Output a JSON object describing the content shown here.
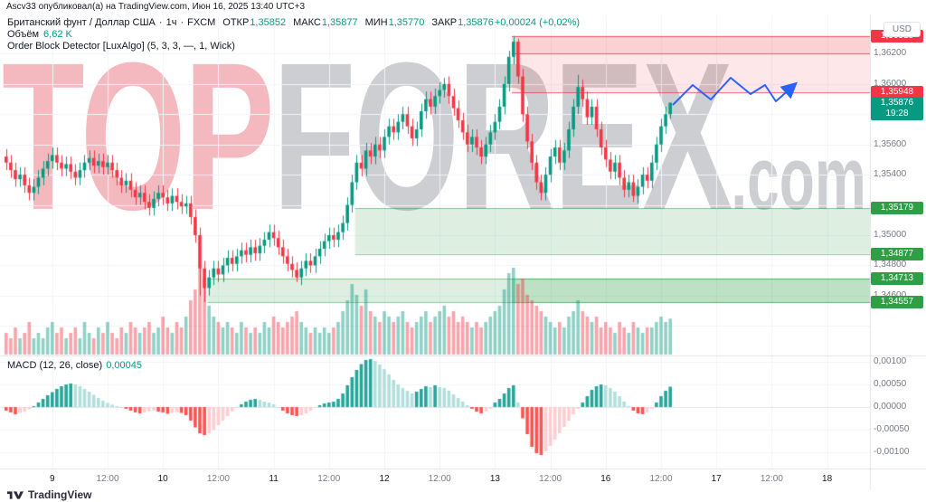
{
  "attribution": "Ascv33 опубликовал(а) на TradingView.com, Июн 16, 2025 13:40 UTC+3",
  "watermark": {
    "top": "TOP",
    "middle": "FOREX",
    "suffix": ".com"
  },
  "header": {
    "symbol": {
      "title": "Британский фунт / Доллар США",
      "sep": "·",
      "interval": "1ч",
      "exchange": "FXCM",
      "open_label": "ОТКР",
      "open": "1,35852",
      "high_label": "МАКС",
      "high": "1,35877",
      "low_label": "МИН",
      "low": "1,35770",
      "close_label": "ЗАКР",
      "close": "1,35876",
      "change": "+0,00024 (+0,02%)"
    },
    "volume": {
      "label": "Объём",
      "value": "6,62 K"
    },
    "indicator_line": "Order Block Detector [LuxAlgo] (5, 3, 3, —, 1, Wick)"
  },
  "macd": {
    "label": "MACD (12, 26, close)",
    "value": "0,00045"
  },
  "axis": {
    "currency": "USD",
    "price_gridlines": [
      {
        "v": 1.362,
        "label": "1,36200"
      },
      {
        "v": 1.36,
        "label": "1,36000"
      },
      {
        "v": 1.358,
        "label": ""
      },
      {
        "v": 1.356,
        "label": "1,35600"
      },
      {
        "v": 1.354,
        "label": "1,35400"
      },
      {
        "v": 1.352,
        "label": ""
      },
      {
        "v": 1.35,
        "label": "1,35000"
      },
      {
        "v": 1.348,
        "label": "1,34800"
      },
      {
        "v": 1.346,
        "label": "1,34600"
      },
      {
        "v": 1.344,
        "label": ""
      }
    ],
    "price_labels": [
      {
        "text": "1,36318",
        "v": 1.36318,
        "bg": "#f23645"
      },
      {
        "text": "1,35948",
        "v": 1.35948,
        "bg": "#f23645"
      },
      {
        "text": "1,35179",
        "v": 1.35179,
        "bg": "#2f9e44"
      },
      {
        "text": "1,34877",
        "v": 1.34877,
        "bg": "#2f9e44"
      },
      {
        "text": "1,34713",
        "v": 1.34713,
        "bg": "#2f9e44"
      },
      {
        "text": "1,34557",
        "v": 1.34557,
        "bg": "#2f9e44"
      }
    ],
    "current_price": {
      "text": "1,35876",
      "countdown": "19:28",
      "v": 1.35876,
      "bg": "#089981"
    },
    "macd_gridlines": [
      {
        "v": 0.001,
        "label": "0,00100"
      },
      {
        "v": 0.0005,
        "label": "0,00050"
      },
      {
        "v": 0.0,
        "label": "0,00000"
      },
      {
        "v": -0.0005,
        "label": "-0,00050"
      },
      {
        "v": -0.001,
        "label": "-0,00100"
      }
    ],
    "time_ticks": [
      {
        "i": 10,
        "label": "9",
        "major": true
      },
      {
        "i": 22,
        "label": "12:00",
        "major": false
      },
      {
        "i": 34,
        "label": "10",
        "major": true
      },
      {
        "i": 46,
        "label": "12:00",
        "major": false
      },
      {
        "i": 58,
        "label": "11",
        "major": true
      },
      {
        "i": 70,
        "label": "12:00",
        "major": false
      },
      {
        "i": 82,
        "label": "12",
        "major": true
      },
      {
        "i": 94,
        "label": "12:00",
        "major": false
      },
      {
        "i": 106,
        "label": "13",
        "major": true
      },
      {
        "i": 118,
        "label": "12:00",
        "major": false
      },
      {
        "i": 130,
        "label": "16",
        "major": true
      },
      {
        "i": 142,
        "label": "12:00",
        "major": false
      },
      {
        "i": 154,
        "label": "17",
        "major": true
      },
      {
        "i": 166,
        "label": "12:00",
        "major": false
      },
      {
        "i": 178,
        "label": "18",
        "major": true
      }
    ]
  },
  "footer": {
    "brand": "TradingView"
  },
  "chart_data": {
    "type": "candlestick",
    "symbol": "GBP/USD",
    "timeframe": "1h",
    "title": "Британский фунт / Доллар США · 1ч · FXCM",
    "price_range": {
      "min": 1.3421,
      "max": 1.3646
    },
    "macd_range": {
      "min": -0.00125,
      "max": 0.00115
    },
    "open_first": 1.3552,
    "default_wick": 0.0005,
    "closes": [
      1.3548,
      1.3543,
      1.3537,
      1.354,
      1.3533,
      1.3528,
      1.3532,
      1.3538,
      1.3544,
      1.3549,
      1.3553,
      1.3548,
      1.3544,
      1.3547,
      1.3542,
      1.3538,
      1.3543,
      1.3548,
      1.3551,
      1.3546,
      1.3549,
      1.3545,
      1.3548,
      1.3543,
      1.3538,
      1.3533,
      1.3536,
      1.353,
      1.3525,
      1.3528,
      1.3522,
      1.3518,
      1.3524,
      1.3528,
      1.3525,
      1.3521,
      1.3526,
      1.3522,
      1.3519,
      1.3521,
      1.3512,
      1.35,
      1.3478,
      1.3465,
      1.3472,
      1.3478,
      1.3474,
      1.348,
      1.3485,
      1.3481,
      1.3486,
      1.349,
      1.3487,
      1.3492,
      1.3488,
      1.3493,
      1.3497,
      1.3502,
      1.3498,
      1.3492,
      1.3486,
      1.3481,
      1.3477,
      1.3472,
      1.3478,
      1.3483,
      1.348,
      1.3486,
      1.3491,
      1.3496,
      1.35,
      1.3497,
      1.3502,
      1.3508,
      1.352,
      1.3535,
      1.3548,
      1.3544,
      1.3556,
      1.3552,
      1.356,
      1.3556,
      1.3565,
      1.3572,
      1.3568,
      1.3575,
      1.358,
      1.3572,
      1.3564,
      1.357,
      1.3582,
      1.359,
      1.3585,
      1.3592,
      1.3596,
      1.36,
      1.3592,
      1.3584,
      1.3576,
      1.3568,
      1.356,
      1.3565,
      1.3558,
      1.3552,
      1.356,
      1.3568,
      1.3575,
      1.3585,
      1.36,
      1.3618,
      1.3628,
      1.3605,
      1.358,
      1.3562,
      1.3548,
      1.3535,
      1.3528,
      1.354,
      1.3552,
      1.3558,
      1.3548,
      1.3556,
      1.357,
      1.3585,
      1.3598,
      1.359,
      1.3578,
      1.3585,
      1.357,
      1.3558,
      1.355,
      1.3542,
      1.3548,
      1.3538,
      1.353,
      1.3535,
      1.3526,
      1.3532,
      1.354,
      1.3536,
      1.3548,
      1.356,
      1.3572,
      1.358,
      1.35876
    ],
    "wick_overrides": {
      "42": {
        "l": 1.346
      },
      "43": {
        "l": 1.34557
      },
      "63": {
        "l": 1.3469
      },
      "95": {
        "h": 1.3604
      },
      "109": {
        "h": 1.3622
      },
      "110": {
        "h": 1.36318
      },
      "111": {
        "h": 1.363
      },
      "116": {
        "l": 1.3523
      },
      "124": {
        "h": 1.3606
      },
      "136": {
        "l": 1.3522
      },
      "144": {
        "h": 1.35877,
        "l": 1.3577
      }
    },
    "volumes_k": [
      4,
      3,
      5,
      3,
      4,
      6,
      3,
      4,
      3,
      5,
      6,
      4,
      5,
      3,
      4,
      5,
      3,
      6,
      4,
      3,
      5,
      4,
      6,
      4,
      3,
      5,
      4,
      6,
      5,
      4,
      5,
      6,
      4,
      5,
      7,
      5,
      4,
      6,
      5,
      7,
      10,
      12,
      16,
      14,
      9,
      7,
      6,
      5,
      6,
      5,
      4,
      6,
      5,
      4,
      5,
      4,
      6,
      5,
      7,
      6,
      5,
      6,
      7,
      8,
      6,
      5,
      4,
      5,
      4,
      5,
      4,
      5,
      6,
      8,
      10,
      13,
      11,
      9,
      12,
      8,
      7,
      6,
      8,
      7,
      6,
      7,
      8,
      6,
      5,
      6,
      7,
      8,
      6,
      7,
      8,
      9,
      7,
      8,
      6,
      7,
      6,
      5,
      6,
      5,
      6,
      7,
      8,
      9,
      12,
      15,
      16,
      13,
      14,
      11,
      10,
      9,
      8,
      7,
      6,
      5,
      6,
      5,
      7,
      8,
      10,
      8,
      7,
      6,
      7,
      5,
      6,
      5,
      4,
      6,
      5,
      4,
      6,
      5,
      4,
      5,
      5,
      6,
      7,
      6,
      6.62
    ],
    "macd_histogram": [
      -8e-05,
      -0.00012,
      -0.00016,
      -0.00013,
      -0.0001,
      -5e-05,
      2e-05,
      0.0001,
      0.00018,
      0.00026,
      0.00033,
      0.0004,
      0.00046,
      0.0005,
      0.00052,
      0.0005,
      0.00046,
      0.0004,
      0.00034,
      0.00027,
      0.0002,
      0.00014,
      9e-05,
      5e-05,
      2e-05,
      0.0,
      -4e-05,
      -8e-05,
      -0.00012,
      -0.00014,
      -0.00012,
      -0.0001,
      -8e-05,
      -0.0001,
      -0.00012,
      -0.00015,
      -0.00013,
      -0.00011,
      -0.00013,
      -0.00018,
      -0.0003,
      -0.00045,
      -0.00058,
      -0.00062,
      -0.00058,
      -0.0005,
      -0.0004,
      -0.0003,
      -0.0002,
      -0.0001,
      -2e-05,
      6e-05,
      0.00012,
      0.00016,
      0.00018,
      0.00016,
      0.00012,
      0.0001,
      6e-05,
      0.0,
      -8e-05,
      -0.00014,
      -0.00018,
      -0.0002,
      -0.00018,
      -0.00014,
      -8e-05,
      -2e-05,
      4e-05,
      8e-05,
      0.0001,
      0.00012,
      0.00018,
      0.0003,
      0.00048,
      0.00066,
      0.00082,
      0.00095,
      0.00104,
      0.00106,
      0.00102,
      0.00094,
      0.00084,
      0.00072,
      0.0006,
      0.0005,
      0.00042,
      0.00036,
      0.0003,
      0.00034,
      0.0004,
      0.00046,
      0.00044,
      0.00048,
      0.00044,
      0.00042,
      0.00036,
      0.00028,
      0.0002,
      0.00012,
      4e-05,
      -4e-05,
      -0.0001,
      -0.00014,
      -0.0001,
      -4e-05,
      0.0001,
      0.00018,
      0.0003,
      0.00042,
      0.00048,
      0.0001,
      -0.00025,
      -0.0006,
      -0.00088,
      -0.00102,
      -0.00106,
      -0.00098,
      -0.00086,
      -0.00072,
      -0.00058,
      -0.00044,
      -0.0003,
      -0.00016,
      -4e-05,
      0.0001,
      0.00024,
      0.00038,
      0.00046,
      0.0005,
      0.00048,
      0.00042,
      0.00034,
      0.00024,
      0.00012,
      2e-05,
      -8e-05,
      -0.00014,
      -0.00016,
      -0.00012,
      -4e-05,
      0.0001,
      0.00024,
      0.00036,
      0.00045
    ],
    "order_blocks": [
      {
        "side": "bearish",
        "start": 110,
        "top": 1.36318,
        "bottom": 1.35948,
        "inner_line": 1.362,
        "fill": "rgba(242,54,69,0.12)",
        "line": "rgba(242,54,69,0.8)"
      },
      {
        "side": "bullish",
        "start": 76,
        "top": 1.35179,
        "bottom": 1.34877,
        "fill": "rgba(47,158,68,0.16)",
        "line": "rgba(47,158,68,0.55)"
      },
      {
        "side": "bullish",
        "start": 44,
        "top": 1.34713,
        "bottom": 1.34557,
        "fill": "rgba(47,158,68,0.16)",
        "line": "rgba(47,158,68,0.55)"
      },
      {
        "side": "bullish",
        "start": 110,
        "top": 1.34713,
        "bottom": 1.34557,
        "fill": "rgba(47,158,68,0.18)",
        "line": "rgba(47,158,68,0.45)"
      }
    ],
    "projection_points": [
      [
        744,
        116
      ],
      [
        766,
        94
      ],
      [
        786,
        110
      ],
      [
        808,
        86
      ],
      [
        830,
        104
      ],
      [
        846,
        94
      ],
      [
        858,
        112
      ],
      [
        876,
        96
      ]
    ],
    "colors": {
      "up": "#089981",
      "down": "#f23645",
      "vol_up": "rgba(8,153,129,0.45)",
      "vol_down": "rgba(242,54,69,0.45)",
      "macd_pos": "#26a69a",
      "macd_pos_weak": "#b2dfdb",
      "macd_neg": "#ff5252",
      "macd_neg_weak": "#ffcdd2",
      "grid": "#f0f3fa",
      "axis_border": "#e0e3eb",
      "projection": "#2962ff"
    }
  }
}
